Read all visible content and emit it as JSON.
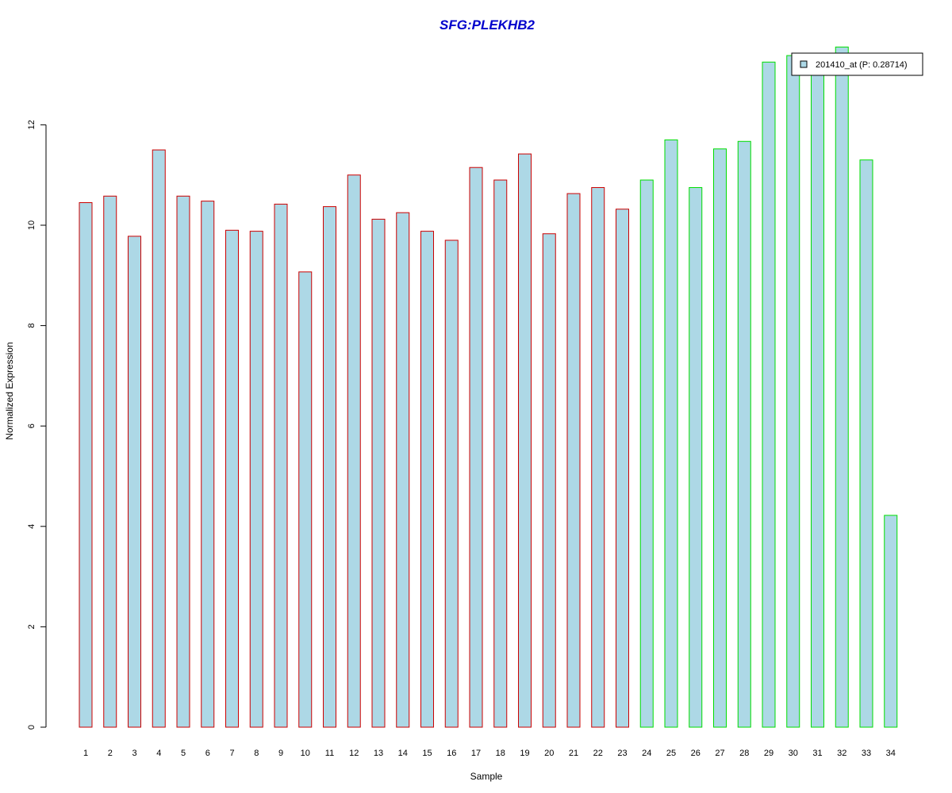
{
  "chart_data": {
    "type": "bar",
    "title": "SFG:PLEKHB2",
    "xlabel": "Sample",
    "ylabel": "Normalized Expression",
    "categories": [
      "1",
      "2",
      "3",
      "4",
      "5",
      "6",
      "7",
      "8",
      "9",
      "10",
      "11",
      "12",
      "13",
      "14",
      "15",
      "16",
      "17",
      "18",
      "19",
      "20",
      "21",
      "22",
      "23",
      "24",
      "25",
      "26",
      "27",
      "28",
      "29",
      "30",
      "31",
      "32",
      "33",
      "34"
    ],
    "series": [
      {
        "name": "201410_at (P: 0.28714)",
        "values": [
          10.45,
          10.58,
          9.78,
          11.5,
          10.58,
          10.48,
          9.9,
          9.88,
          10.42,
          9.07,
          10.37,
          11.0,
          10.12,
          10.25,
          9.88,
          9.7,
          11.15,
          10.9,
          11.42,
          9.83,
          10.63,
          10.75,
          10.32,
          10.9,
          11.7,
          10.75,
          11.52,
          11.67,
          13.25,
          13.38,
          13.25,
          13.55,
          11.3,
          4.22
        ]
      }
    ],
    "groups": [
      {
        "from": 1,
        "to": 23,
        "border_color": "#cc0000"
      },
      {
        "from": 24,
        "to": 34,
        "border_color": "#00dd00"
      }
    ],
    "ylim": [
      0,
      13.55
    ],
    "yticks": [
      0,
      2,
      4,
      6,
      8,
      10,
      12
    ],
    "fill_color": "#add8e6",
    "title_color": "#0000cc",
    "legend_position": "top-right",
    "grid": false
  }
}
